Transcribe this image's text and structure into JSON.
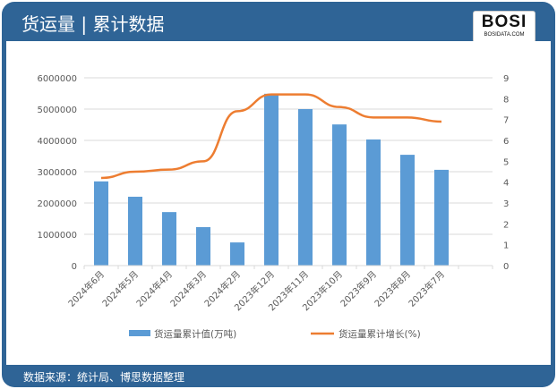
{
  "header": {
    "title": "货运量 | 累计数据",
    "logo": "BOSI",
    "logo_sub": "BOSIDATA.COM"
  },
  "footer": {
    "source": "数据来源：统计局、博思数据整理"
  },
  "chart_data": {
    "type": "bar+line",
    "categories": [
      "2024年6月",
      "2024年5月",
      "2024年4月",
      "2024年3月",
      "2024年2月",
      "2023年12月",
      "2023年11月",
      "2023年10月",
      "2023年9月",
      "2023年8月",
      "2023年7月",
      ""
    ],
    "series": [
      {
        "name": "货运量累计值(万吨)",
        "type": "bar",
        "axis": "left",
        "color": "#5b9bd5",
        "values": [
          2690000,
          2200000,
          1710000,
          1230000,
          740000,
          5490000,
          5000000,
          4510000,
          4030000,
          3540000,
          3060000,
          null
        ]
      },
      {
        "name": "货运量累计增长(%)",
        "type": "line",
        "axis": "right",
        "color": "#ed7d31",
        "values": [
          4.2,
          4.5,
          4.6,
          5.0,
          7.4,
          8.2,
          8.2,
          7.6,
          7.1,
          7.1,
          6.9,
          null
        ]
      }
    ],
    "left_axis": {
      "range": [
        0,
        6000000
      ],
      "ticks": [
        "0",
        "1000000",
        "2000000",
        "3000000",
        "4000000",
        "5000000",
        "6000000"
      ]
    },
    "right_axis": {
      "range": [
        0,
        9
      ],
      "ticks": [
        "0",
        "1",
        "2",
        "3",
        "4",
        "5",
        "6",
        "7",
        "8",
        "9"
      ]
    },
    "grid": true,
    "legend": "bottom"
  }
}
